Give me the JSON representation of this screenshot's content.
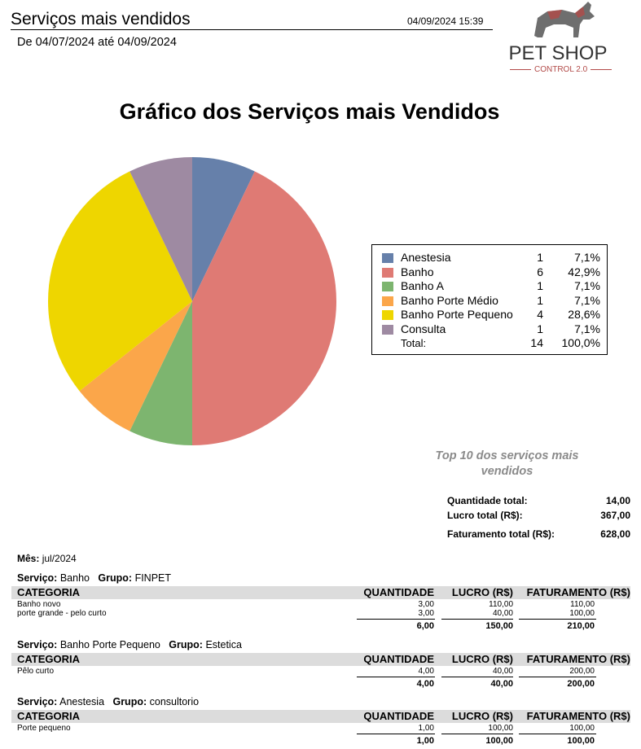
{
  "header": {
    "title": "Serviços mais vendidos",
    "datetime": "04/09/2024 15:39",
    "period": "De 04/07/2024 até 04/09/2024"
  },
  "logo": {
    "brand": "PET SHOP",
    "subtitle": "CONTROL 2.0",
    "accent_color": "#b24a48",
    "icon": "dog-silhouette-icon"
  },
  "chart_data": {
    "type": "pie",
    "title": "Gráfico dos Serviços mais Vendidos",
    "legend_position": "right",
    "slices": [
      {
        "name": "Anestesia",
        "value": 1,
        "percent": "7,1%",
        "color": "#6680aa"
      },
      {
        "name": "Banho",
        "value": 6,
        "percent": "42,9%",
        "color": "#df7a74"
      },
      {
        "name": "Banho A",
        "value": 1,
        "percent": "7,1%",
        "color": "#7db56f"
      },
      {
        "name": "Banho Porte Médio",
        "value": 1,
        "percent": "7,1%",
        "color": "#fba64a"
      },
      {
        "name": "Banho Porte Pequeno",
        "value": 4,
        "percent": "28,6%",
        "color": "#eed600"
      },
      {
        "name": "Consulta",
        "value": 1,
        "percent": "7,1%",
        "color": "#9e8aa2"
      }
    ],
    "total": {
      "label": "Total:",
      "value": "14",
      "percent": "100,0%"
    }
  },
  "summary": {
    "caption": "Top 10 dos serviços mais vendidos",
    "quantidade_label": "Quantidade total:",
    "quantidade_value": "14,00",
    "lucro_label": "Lucro total (R$):",
    "lucro_value": "367,00",
    "faturamento_label": "Faturamento total (R$):",
    "faturamento_value": "628,00"
  },
  "detail": {
    "month_label": "Mês:",
    "month_value": "jul/2024",
    "service_label": "Serviço:",
    "group_label": "Grupo:",
    "columns": {
      "categoria": "CATEGORIA",
      "quantidade": "QUANTIDADE",
      "lucro": "LUCRO (R$)",
      "faturamento": "FATURAMENTO (R$)"
    },
    "services": [
      {
        "service": "Banho",
        "group": "FINPET",
        "rows": [
          {
            "categoria": "Banho novo",
            "quantidade": "3,00",
            "lucro": "110,00",
            "faturamento": "110,00"
          },
          {
            "categoria": "porte grande - pelo curto",
            "quantidade": "3,00",
            "lucro": "40,00",
            "faturamento": "100,00"
          }
        ],
        "totals": {
          "quantidade": "6,00",
          "lucro": "150,00",
          "faturamento": "210,00"
        }
      },
      {
        "service": "Banho Porte Pequeno",
        "group": "Estetica",
        "rows": [
          {
            "categoria": "Pêlo curto",
            "quantidade": "4,00",
            "lucro": "40,00",
            "faturamento": "200,00"
          }
        ],
        "totals": {
          "quantidade": "4,00",
          "lucro": "40,00",
          "faturamento": "200,00"
        }
      },
      {
        "service": "Anestesia",
        "group": "consultorio",
        "rows": [
          {
            "categoria": "Porte pequeno",
            "quantidade": "1,00",
            "lucro": "100,00",
            "faturamento": "100,00"
          }
        ],
        "totals": {
          "quantidade": "1,00",
          "lucro": "100,00",
          "faturamento": "100,00"
        }
      }
    ]
  }
}
